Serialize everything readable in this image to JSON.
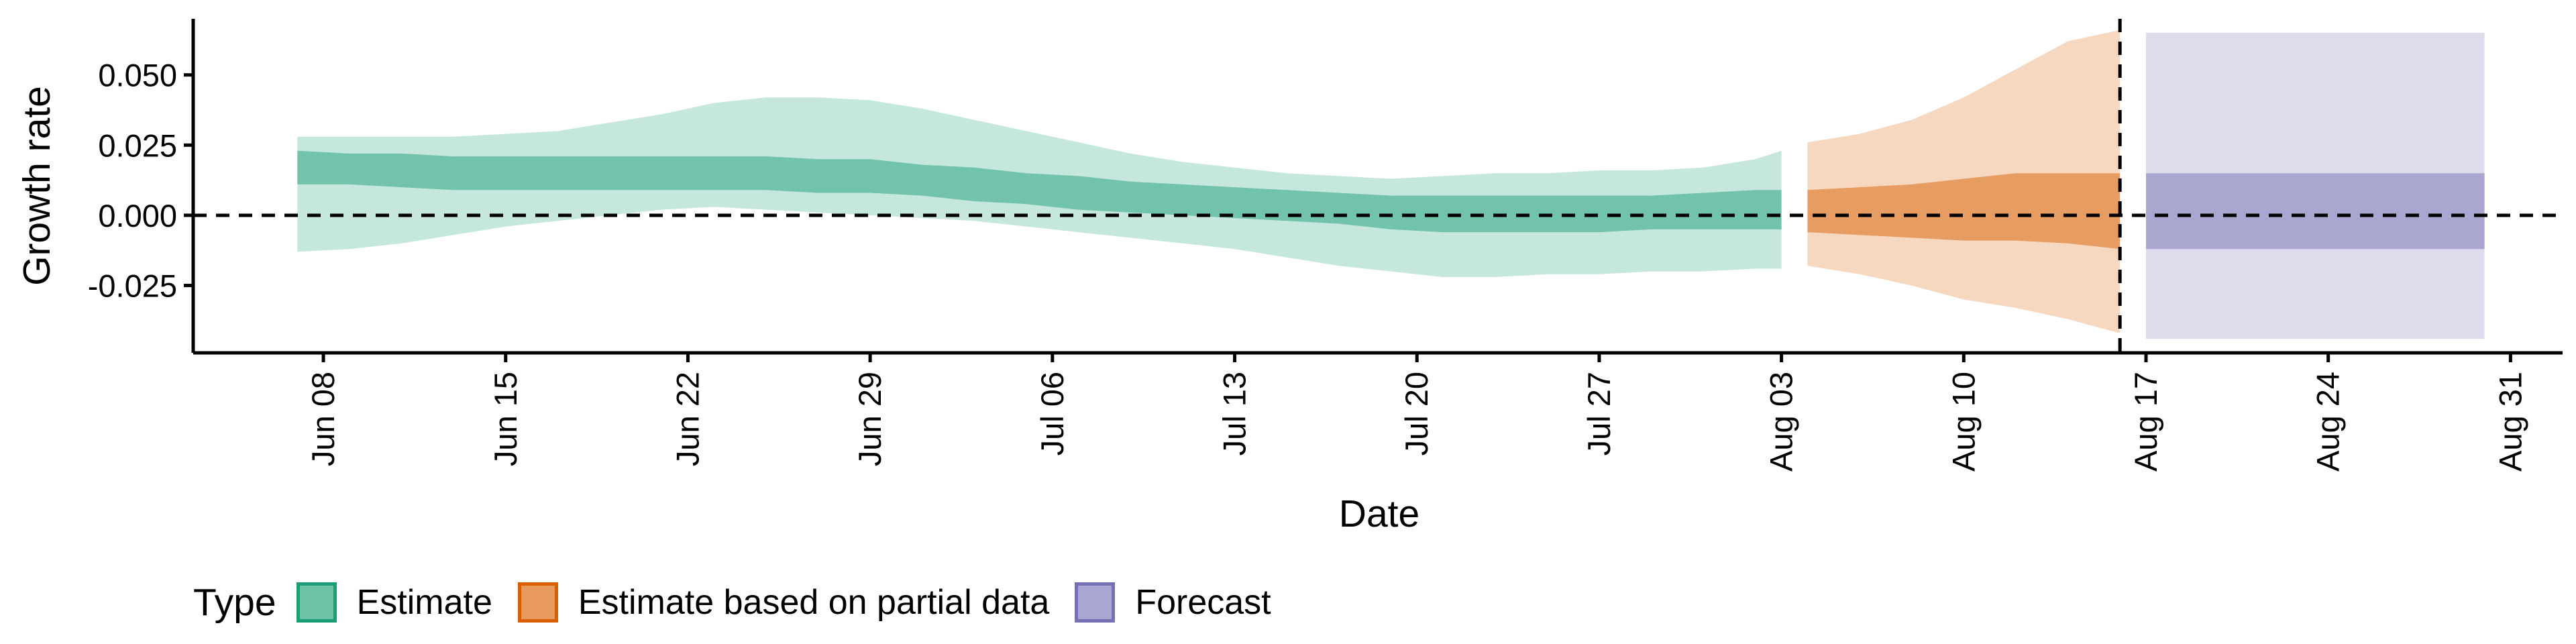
{
  "chart_data": {
    "type": "area",
    "xlabel": "Date",
    "ylabel": "Growth rate",
    "x_ticks": [
      "Jun 08",
      "Jun 15",
      "Jun 22",
      "Jun 29",
      "Jul 06",
      "Jul 13",
      "Jul 20",
      "Jul 27",
      "Aug 03",
      "Aug 10",
      "Aug 17",
      "Aug 24",
      "Aug 31"
    ],
    "y_ticks": [
      "0.050",
      "0.025",
      "0.000",
      "-0.025"
    ],
    "xlim": [
      "2020-06-03",
      "2020-09-02"
    ],
    "ylim": [
      -0.049,
      0.07
    ],
    "reference_lines": {
      "horizontal_y": 0,
      "vertical_date": "2020-08-16"
    },
    "legend_position": "bottom-left",
    "grid": false,
    "legend": {
      "title": "Type",
      "items": [
        {
          "label": "Estimate",
          "color": "#1B9E77"
        },
        {
          "label": "Estimate based on partial data",
          "color": "#D95F02"
        },
        {
          "label": "Forecast",
          "color": "#7570B3"
        }
      ]
    },
    "series": [
      {
        "name": "Estimate",
        "color": "#1B9E77",
        "x": [
          "2020-06-07",
          "2020-06-09",
          "2020-06-11",
          "2020-06-13",
          "2020-06-15",
          "2020-06-17",
          "2020-06-19",
          "2020-06-21",
          "2020-06-23",
          "2020-06-25",
          "2020-06-27",
          "2020-06-29",
          "2020-07-01",
          "2020-07-03",
          "2020-07-05",
          "2020-07-07",
          "2020-07-09",
          "2020-07-11",
          "2020-07-13",
          "2020-07-15",
          "2020-07-17",
          "2020-07-19",
          "2020-07-21",
          "2020-07-23",
          "2020-07-25",
          "2020-07-27",
          "2020-07-29",
          "2020-07-31",
          "2020-08-02",
          "2020-08-03"
        ],
        "lower_90": [
          -0.013,
          -0.012,
          -0.01,
          -0.007,
          -0.004,
          -0.002,
          0.0,
          0.002,
          0.003,
          0.002,
          0.001,
          0.0,
          -0.001,
          -0.002,
          -0.004,
          -0.006,
          -0.008,
          -0.01,
          -0.012,
          -0.015,
          -0.018,
          -0.02,
          -0.022,
          -0.022,
          -0.021,
          -0.021,
          -0.02,
          -0.02,
          -0.019,
          -0.019
        ],
        "upper_90": [
          0.028,
          0.028,
          0.028,
          0.028,
          0.029,
          0.03,
          0.033,
          0.036,
          0.04,
          0.042,
          0.042,
          0.041,
          0.038,
          0.034,
          0.03,
          0.026,
          0.022,
          0.019,
          0.017,
          0.015,
          0.014,
          0.013,
          0.014,
          0.015,
          0.015,
          0.016,
          0.016,
          0.017,
          0.02,
          0.023
        ],
        "lower_50": [
          0.011,
          0.011,
          0.01,
          0.009,
          0.009,
          0.009,
          0.009,
          0.009,
          0.009,
          0.009,
          0.008,
          0.008,
          0.007,
          0.005,
          0.004,
          0.002,
          0.001,
          0.0,
          -0.001,
          -0.002,
          -0.003,
          -0.005,
          -0.006,
          -0.006,
          -0.006,
          -0.006,
          -0.005,
          -0.005,
          -0.005,
          -0.005
        ],
        "upper_50": [
          0.023,
          0.022,
          0.022,
          0.021,
          0.021,
          0.021,
          0.021,
          0.021,
          0.021,
          0.021,
          0.02,
          0.02,
          0.018,
          0.017,
          0.015,
          0.014,
          0.012,
          0.011,
          0.01,
          0.009,
          0.008,
          0.007,
          0.007,
          0.007,
          0.007,
          0.007,
          0.007,
          0.008,
          0.009,
          0.009
        ]
      },
      {
        "name": "Estimate based on partial data",
        "color": "#D95F02",
        "x": [
          "2020-08-04",
          "2020-08-06",
          "2020-08-08",
          "2020-08-10",
          "2020-08-12",
          "2020-08-14",
          "2020-08-16"
        ],
        "lower_90": [
          -0.018,
          -0.021,
          -0.025,
          -0.03,
          -0.033,
          -0.037,
          -0.042
        ],
        "upper_90": [
          0.026,
          0.029,
          0.034,
          0.042,
          0.052,
          0.062,
          0.066
        ],
        "lower_50": [
          -0.006,
          -0.007,
          -0.008,
          -0.009,
          -0.009,
          -0.01,
          -0.012
        ],
        "upper_50": [
          0.009,
          0.01,
          0.011,
          0.013,
          0.015,
          0.015,
          0.015
        ]
      },
      {
        "name": "Forecast",
        "color": "#7570B3",
        "x": [
          "2020-08-17",
          "2020-08-30"
        ],
        "lower_90": [
          -0.044,
          -0.044
        ],
        "upper_90": [
          0.065,
          0.065
        ],
        "lower_50": [
          -0.012,
          -0.012
        ],
        "upper_50": [
          0.015,
          0.015
        ]
      }
    ]
  }
}
